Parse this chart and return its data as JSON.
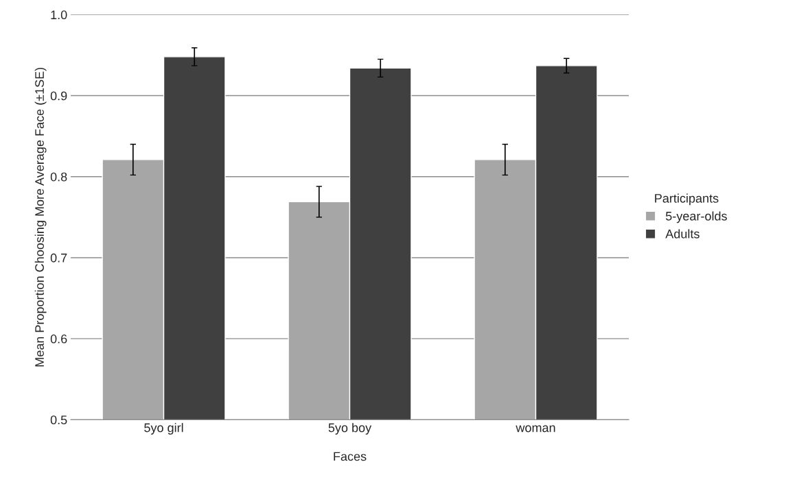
{
  "chart_data": {
    "type": "bar",
    "xlabel": "Faces",
    "ylabel": "Mean Proportion Choosing More Average Face (±1SE)",
    "legend_title": "Participants",
    "categories": [
      "5yo girl",
      "5yo boy",
      "woman"
    ],
    "series": [
      {
        "name": "5-year-olds",
        "color": "#a6a6a6",
        "values": [
          0.821,
          0.769,
          0.821
        ],
        "errors": [
          0.019,
          0.019,
          0.019
        ]
      },
      {
        "name": "Adults",
        "color": "#404040",
        "values": [
          0.948,
          0.934,
          0.937
        ],
        "errors": [
          0.011,
          0.011,
          0.009
        ]
      }
    ],
    "ylim": [
      0.5,
      1.0
    ],
    "yticks": [
      {
        "value": 0.5,
        "label": "0.5"
      },
      {
        "value": 0.6,
        "label": "0.6"
      },
      {
        "value": 0.7,
        "label": "0.7"
      },
      {
        "value": 0.8,
        "label": "0.8"
      },
      {
        "value": 0.9,
        "label": "0.9"
      },
      {
        "value": 1.0,
        "label": "1.0"
      }
    ],
    "grid": "y",
    "legend": "right"
  }
}
